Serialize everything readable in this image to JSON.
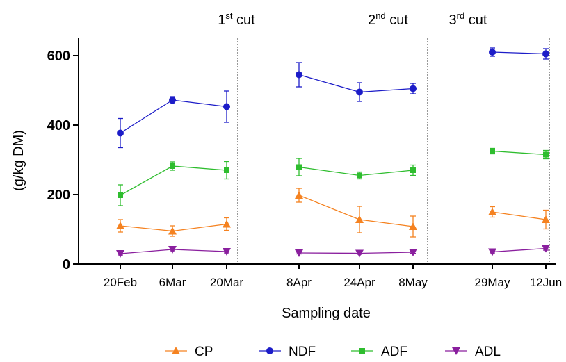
{
  "chart_data": {
    "type": "line",
    "ylabel": "(g/kg DM)",
    "xlabel": "Sampling date",
    "ylim": [
      0,
      650
    ],
    "yticks": [
      0,
      200,
      400,
      600
    ],
    "categories": [
      "20Feb",
      "6Mar",
      "20Mar",
      "8Apr",
      "24Apr",
      "8May",
      "29May",
      "12Jun"
    ],
    "x": [
      "2019-02-20",
      "2019-03-06",
      "2019-03-20",
      "2019-04-08",
      "2019-04-24",
      "2019-05-08",
      "2019-05-29",
      "2019-06-12"
    ],
    "segments": [
      [
        0,
        1,
        2
      ],
      [
        3,
        4,
        5
      ],
      [
        6,
        7
      ]
    ],
    "cuts": [
      {
        "base": "1",
        "sup": "st",
        "rest": " cut",
        "date": "2019-03-24"
      },
      {
        "base": "2",
        "sup": "nd",
        "rest": " cut",
        "date": "2019-05-18"
      },
      {
        "base": "3",
        "sup": "rd",
        "rest": " cut",
        "date": "2019-06-14"
      }
    ],
    "series": [
      {
        "name": "CP",
        "color": "#f58220",
        "marker": "triangle-up",
        "values": [
          110,
          95,
          115,
          198,
          128,
          108,
          150,
          128
        ],
        "errors": [
          18,
          15,
          18,
          20,
          38,
          30,
          15,
          27
        ]
      },
      {
        "name": "NDF",
        "color": "#1c1cc8",
        "marker": "circle",
        "values": [
          377,
          472,
          453,
          545,
          495,
          505,
          610,
          605
        ],
        "errors": [
          42,
          10,
          45,
          35,
          27,
          15,
          12,
          15
        ]
      },
      {
        "name": "ADF",
        "color": "#2ebd2e",
        "marker": "square",
        "values": [
          198,
          282,
          270,
          279,
          255,
          270,
          325,
          315
        ],
        "errors": [
          30,
          12,
          25,
          25,
          10,
          15,
          8,
          12
        ]
      },
      {
        "name": "ADL",
        "color": "#8a1f9e",
        "marker": "triangle-down",
        "values": [
          30,
          42,
          36,
          32,
          31,
          34,
          35,
          45
        ],
        "errors": [
          4,
          4,
          4,
          3,
          3,
          3,
          3,
          5
        ]
      }
    ]
  }
}
